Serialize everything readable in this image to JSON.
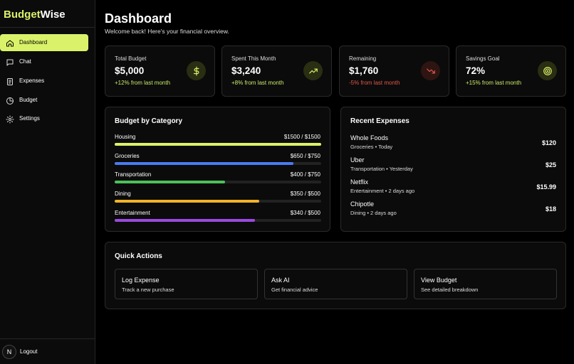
{
  "brand": {
    "first": "Budget",
    "second": "Wise"
  },
  "nav": [
    "Dashboard",
    "Chat",
    "Expenses",
    "Budget",
    "Settings"
  ],
  "user": {
    "initial": "N",
    "action": "Logout"
  },
  "header": {
    "title": "Dashboard",
    "subtitle": "Welcome back! Here's your financial overview."
  },
  "stats": [
    {
      "label": "Total Budget",
      "value": "$5,000",
      "change": "+12% from last month",
      "color": "#c9ea6a"
    },
    {
      "label": "Spent This Month",
      "value": "$3,240",
      "change": "+8% from last month",
      "color": "#c9ea6a"
    },
    {
      "label": "Remaining",
      "value": "$1,760",
      "change": "-5% from last month",
      "color": "#e0574a"
    },
    {
      "label": "Savings Goal",
      "value": "72%",
      "change": "+15% from last month",
      "color": "#c9ea6a"
    }
  ],
  "budget": {
    "title": "Budget by Category",
    "categories": [
      {
        "name": "Housing",
        "spent": 1500,
        "budget": 1500,
        "label": "$1500 / $1500",
        "color": "#d9f26a"
      },
      {
        "name": "Groceries",
        "spent": 650,
        "budget": 750,
        "label": "$650 / $750",
        "color": "#4a7cf0"
      },
      {
        "name": "Transportation",
        "spent": 400,
        "budget": 750,
        "label": "$400 / $750",
        "color": "#4cc25a"
      },
      {
        "name": "Dining",
        "spent": 350,
        "budget": 500,
        "label": "$350 / $500",
        "color": "#f0b429"
      },
      {
        "name": "Entertainment",
        "spent": 340,
        "budget": 500,
        "label": "$340 / $500",
        "color": "#9b4ae0"
      }
    ]
  },
  "expenses": {
    "title": "Recent Expenses",
    "items": [
      {
        "name": "Whole Foods",
        "meta": "Groceries • Today",
        "amount": "$120"
      },
      {
        "name": "Uber",
        "meta": "Transportation • Yesterday",
        "amount": "$25"
      },
      {
        "name": "Netflix",
        "meta": "Entertainment • 2 days ago",
        "amount": "$15.99"
      },
      {
        "name": "Chipotle",
        "meta": "Dining • 2 days ago",
        "amount": "$18"
      }
    ]
  },
  "quick_actions": {
    "title": "Quick Actions",
    "actions": [
      {
        "title": "Log Expense",
        "description": "Track a new purchase"
      },
      {
        "title": "Ask AI",
        "description": "Get financial advice"
      },
      {
        "title": "View Budget",
        "description": "See detailed breakdown"
      }
    ]
  }
}
